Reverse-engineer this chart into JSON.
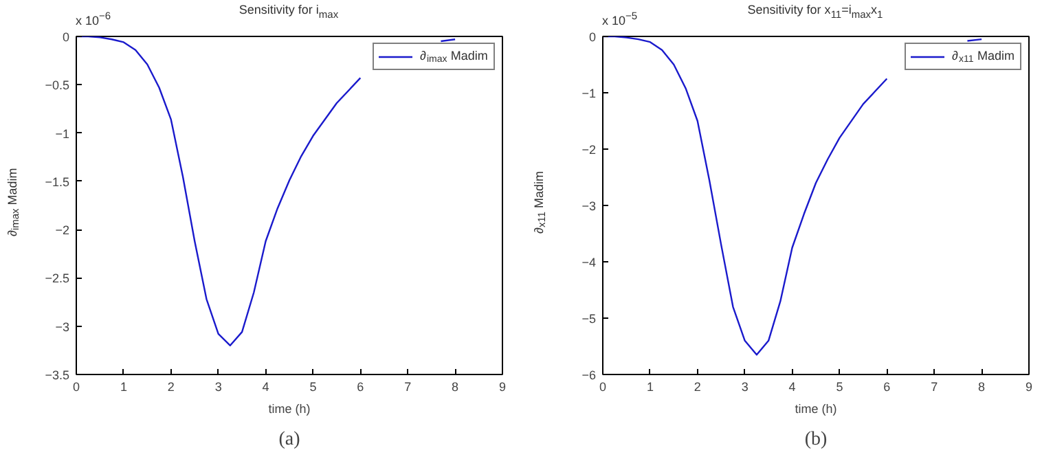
{
  "chart_data": [
    {
      "type": "line",
      "title": "Sensitivity for i$_{max}$",
      "xlabel": "time (h)",
      "ylabel": "∂$_{imax}$ Madim",
      "x": [
        0,
        0.25,
        0.5,
        0.75,
        1,
        1.25,
        1.5,
        1.75,
        2,
        2.25,
        2.5,
        2.75,
        3,
        3.25,
        3.5,
        3.75,
        4,
        4.25,
        4.5,
        4.75,
        5,
        5.5,
        6,
        6.5,
        7,
        7.5,
        7.7,
        8
      ],
      "series": [
        {
          "name": "∂$_{imax}$ Madim",
          "color": "#1a1acc",
          "values": [
            0,
            0,
            -0.01,
            -0.03,
            -0.06,
            -0.14,
            -0.29,
            -0.53,
            -0.86,
            -1.45,
            -2.12,
            -2.72,
            -3.08,
            -3.2,
            -3.06,
            -2.65,
            -2.12,
            -1.78,
            -1.49,
            -1.24,
            -1.03,
            -0.69,
            -0.43,
            null,
            null,
            null,
            -0.05,
            -0.03
          ]
        }
      ],
      "xlim": [
        0,
        9
      ],
      "xticks": [
        0,
        1,
        2,
        3,
        4,
        5,
        6,
        7,
        8,
        9
      ],
      "ylim": [
        -3.5,
        0
      ],
      "yticks": [
        {
          "value": -3.5,
          "label": "−3.5"
        },
        {
          "value": -3,
          "label": "−3"
        },
        {
          "value": -2.5,
          "label": "−2.5"
        },
        {
          "value": -2,
          "label": "−2"
        },
        {
          "value": -1.5,
          "label": "−1.5"
        },
        {
          "value": -1,
          "label": "−1"
        },
        {
          "value": -0.5,
          "label": "−0.5"
        },
        0
      ],
      "legend": "top right",
      "grid": false,
      "annotations": [
        "x 10$^{−6}$",
        "(a)"
      ]
    },
    {
      "type": "line",
      "title": "Sensitivity for x$_{11}$=i$_{max}$x$_{1}$",
      "xlabel": "time (h)",
      "ylabel": "∂$_{x11}$ Madim",
      "x": [
        0,
        0.25,
        0.5,
        0.75,
        1,
        1.25,
        1.5,
        1.75,
        2,
        2.25,
        2.5,
        2.75,
        3,
        3.25,
        3.5,
        3.75,
        4,
        4.25,
        4.5,
        4.75,
        5,
        5.5,
        6,
        6.5,
        7,
        7.5,
        7.7,
        8
      ],
      "series": [
        {
          "name": "∂$_{x11}$ Madim",
          "color": "#1a1acc",
          "values": [
            0,
            0,
            -0.02,
            -0.05,
            -0.1,
            -0.24,
            -0.5,
            -0.92,
            -1.5,
            -2.55,
            -3.7,
            -4.8,
            -5.4,
            -5.65,
            -5.4,
            -4.7,
            -3.75,
            -3.15,
            -2.6,
            -2.18,
            -1.8,
            -1.2,
            -0.75,
            null,
            null,
            null,
            -0.08,
            -0.05
          ]
        }
      ],
      "xlim": [
        0,
        9
      ],
      "xticks": [
        0,
        1,
        2,
        3,
        4,
        5,
        6,
        7,
        8,
        9
      ],
      "ylim": [
        -6,
        0
      ],
      "yticks": [
        {
          "value": -6,
          "label": "−6"
        },
        {
          "value": -5,
          "label": "−5"
        },
        {
          "value": -4,
          "label": "−4"
        },
        {
          "value": -3,
          "label": "−3"
        },
        {
          "value": -2,
          "label": "−2"
        },
        {
          "value": -1,
          "label": "−1"
        },
        0
      ],
      "legend": "top right",
      "grid": false,
      "annotations": [
        "x 10$^{−5}$",
        "(b)"
      ]
    }
  ]
}
